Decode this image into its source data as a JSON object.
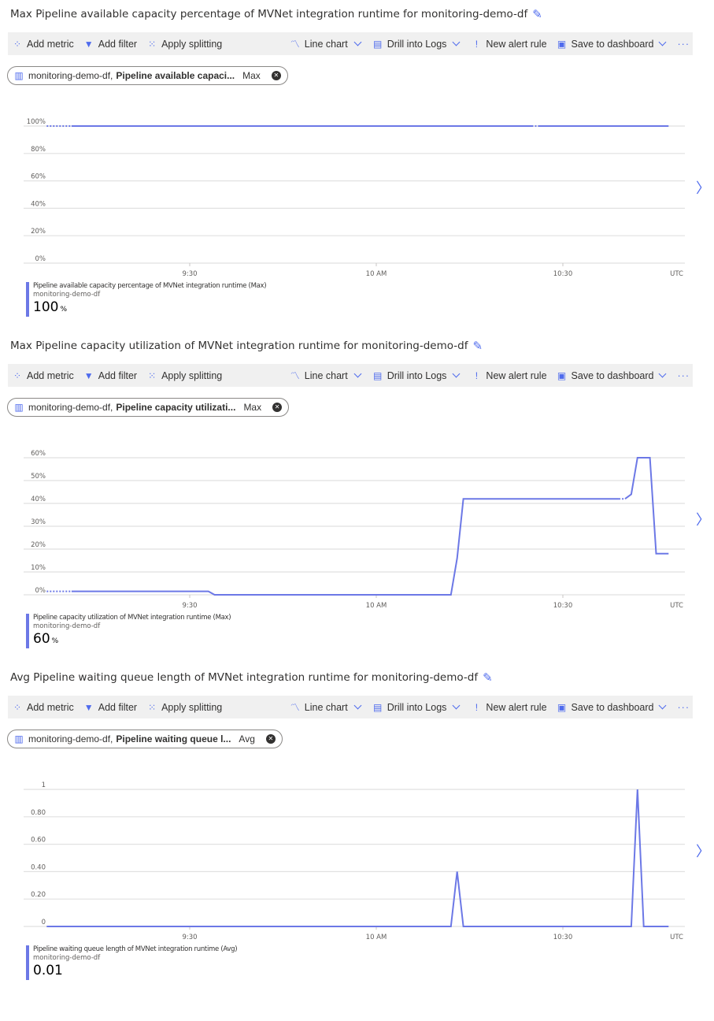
{
  "toolbar": {
    "add_metric": "Add metric",
    "add_filter": "Add filter",
    "apply_splitting": "Apply splitting",
    "line_chart": "Line chart",
    "drill_logs": "Drill into Logs",
    "new_alert": "New alert rule",
    "save_dashboard": "Save to dashboard",
    "more": "···"
  },
  "colors": {
    "series": "#6c78e6",
    "accent": "#4f6bed",
    "toolbar_bg": "#f0f0f0",
    "grid": "#e1e1e1"
  },
  "panels": [
    {
      "title": "Max Pipeline available capacity percentage of MVNet integration runtime for monitoring-demo-df",
      "pill": {
        "resource": "monitoring-demo-df,",
        "metric": "Pipeline available capaci...",
        "agg": "Max"
      },
      "legend": {
        "metric": "Pipeline available capacity percentage of MVNet integration runtime (Max)",
        "resource": "monitoring-demo-df",
        "value": "100",
        "unit": "%"
      }
    },
    {
      "title": "Max Pipeline capacity utilization of MVNet integration runtime for monitoring-demo-df",
      "pill": {
        "resource": "monitoring-demo-df,",
        "metric": "Pipeline capacity utilizati...",
        "agg": "Max"
      },
      "legend": {
        "metric": "Pipeline capacity utilization of MVNet integration runtime (Max)",
        "resource": "monitoring-demo-df",
        "value": "60",
        "unit": "%"
      }
    },
    {
      "title": "Avg Pipeline waiting queue length of MVNet integration runtime for monitoring-demo-df",
      "pill": {
        "resource": "monitoring-demo-df,",
        "metric": "Pipeline waiting queue l...",
        "agg": "Avg"
      },
      "legend": {
        "metric": "Pipeline waiting queue length of MVNet integration runtime (Avg)",
        "resource": "monitoring-demo-df",
        "value": "0.01",
        "unit": ""
      }
    }
  ],
  "chart_data": [
    {
      "type": "line",
      "grid": true,
      "ylim": [
        0,
        100
      ],
      "yticks": [
        "0%",
        "20%",
        "40%",
        "60%",
        "80%",
        "100%"
      ],
      "ytick_values": [
        0,
        20,
        40,
        60,
        80,
        100
      ],
      "xticks": [
        "9:30",
        "10 AM",
        "10:30"
      ],
      "xtick_values": [
        "9:30",
        "10:00",
        "10:30"
      ],
      "timezone": "UTC",
      "segments": [
        {
          "style": "dotted",
          "points": [
            [
              "9:07",
              100
            ],
            [
              "9:11",
              100
            ]
          ]
        },
        {
          "style": "solid",
          "points": [
            [
              "9:11",
              100
            ],
            [
              "10:25",
              100
            ]
          ]
        },
        {
          "style": "dotted",
          "points": [
            [
              "10:25",
              100
            ],
            [
              "10:26",
              100
            ]
          ]
        },
        {
          "style": "solid",
          "points": [
            [
              "10:26",
              100
            ],
            [
              "10:47",
              100
            ]
          ]
        }
      ]
    },
    {
      "type": "line",
      "grid": true,
      "ylim": [
        0,
        60
      ],
      "yticks": [
        "0%",
        "10%",
        "20%",
        "30%",
        "40%",
        "50%",
        "60%"
      ],
      "ytick_values": [
        0,
        10,
        20,
        30,
        40,
        50,
        60
      ],
      "xticks": [
        "9:30",
        "10 AM",
        "10:30"
      ],
      "xtick_values": [
        "9:30",
        "10:00",
        "10:30"
      ],
      "timezone": "UTC",
      "segments": [
        {
          "style": "dotted",
          "points": [
            [
              "9:07",
              1.5
            ],
            [
              "9:11",
              1.5
            ]
          ]
        },
        {
          "style": "solid",
          "points": [
            [
              "9:11",
              1.5
            ],
            [
              "9:33",
              1.5
            ],
            [
              "9:34",
              0
            ],
            [
              "10:12",
              0
            ],
            [
              "10:13",
              16
            ],
            [
              "10:14",
              42
            ],
            [
              "10:39",
              42
            ]
          ]
        },
        {
          "style": "dotted",
          "points": [
            [
              "10:39",
              42
            ],
            [
              "10:40",
              42
            ]
          ]
        },
        {
          "style": "solid",
          "points": [
            [
              "10:40",
              42
            ],
            [
              "10:41",
              44
            ],
            [
              "10:42",
              60
            ],
            [
              "10:44",
              60
            ],
            [
              "10:45",
              18
            ],
            [
              "10:47",
              18
            ]
          ]
        }
      ]
    },
    {
      "type": "line",
      "grid": true,
      "ylim": [
        0,
        1
      ],
      "yticks": [
        "0",
        "0.20",
        "0.40",
        "0.60",
        "0.80",
        "1"
      ],
      "ytick_values": [
        0,
        0.2,
        0.4,
        0.6,
        0.8,
        1
      ],
      "xticks": [
        "9:30",
        "10 AM",
        "10:30"
      ],
      "xtick_values": [
        "9:30",
        "10:00",
        "10:30"
      ],
      "timezone": "UTC",
      "segments": [
        {
          "style": "solid",
          "points": [
            [
              "9:07",
              0
            ],
            [
              "10:12",
              0
            ],
            [
              "10:13",
              0.4
            ],
            [
              "10:14",
              0
            ],
            [
              "10:41",
              0
            ],
            [
              "10:42",
              1
            ],
            [
              "10:43",
              0
            ],
            [
              "10:47",
              0
            ]
          ]
        }
      ]
    }
  ]
}
